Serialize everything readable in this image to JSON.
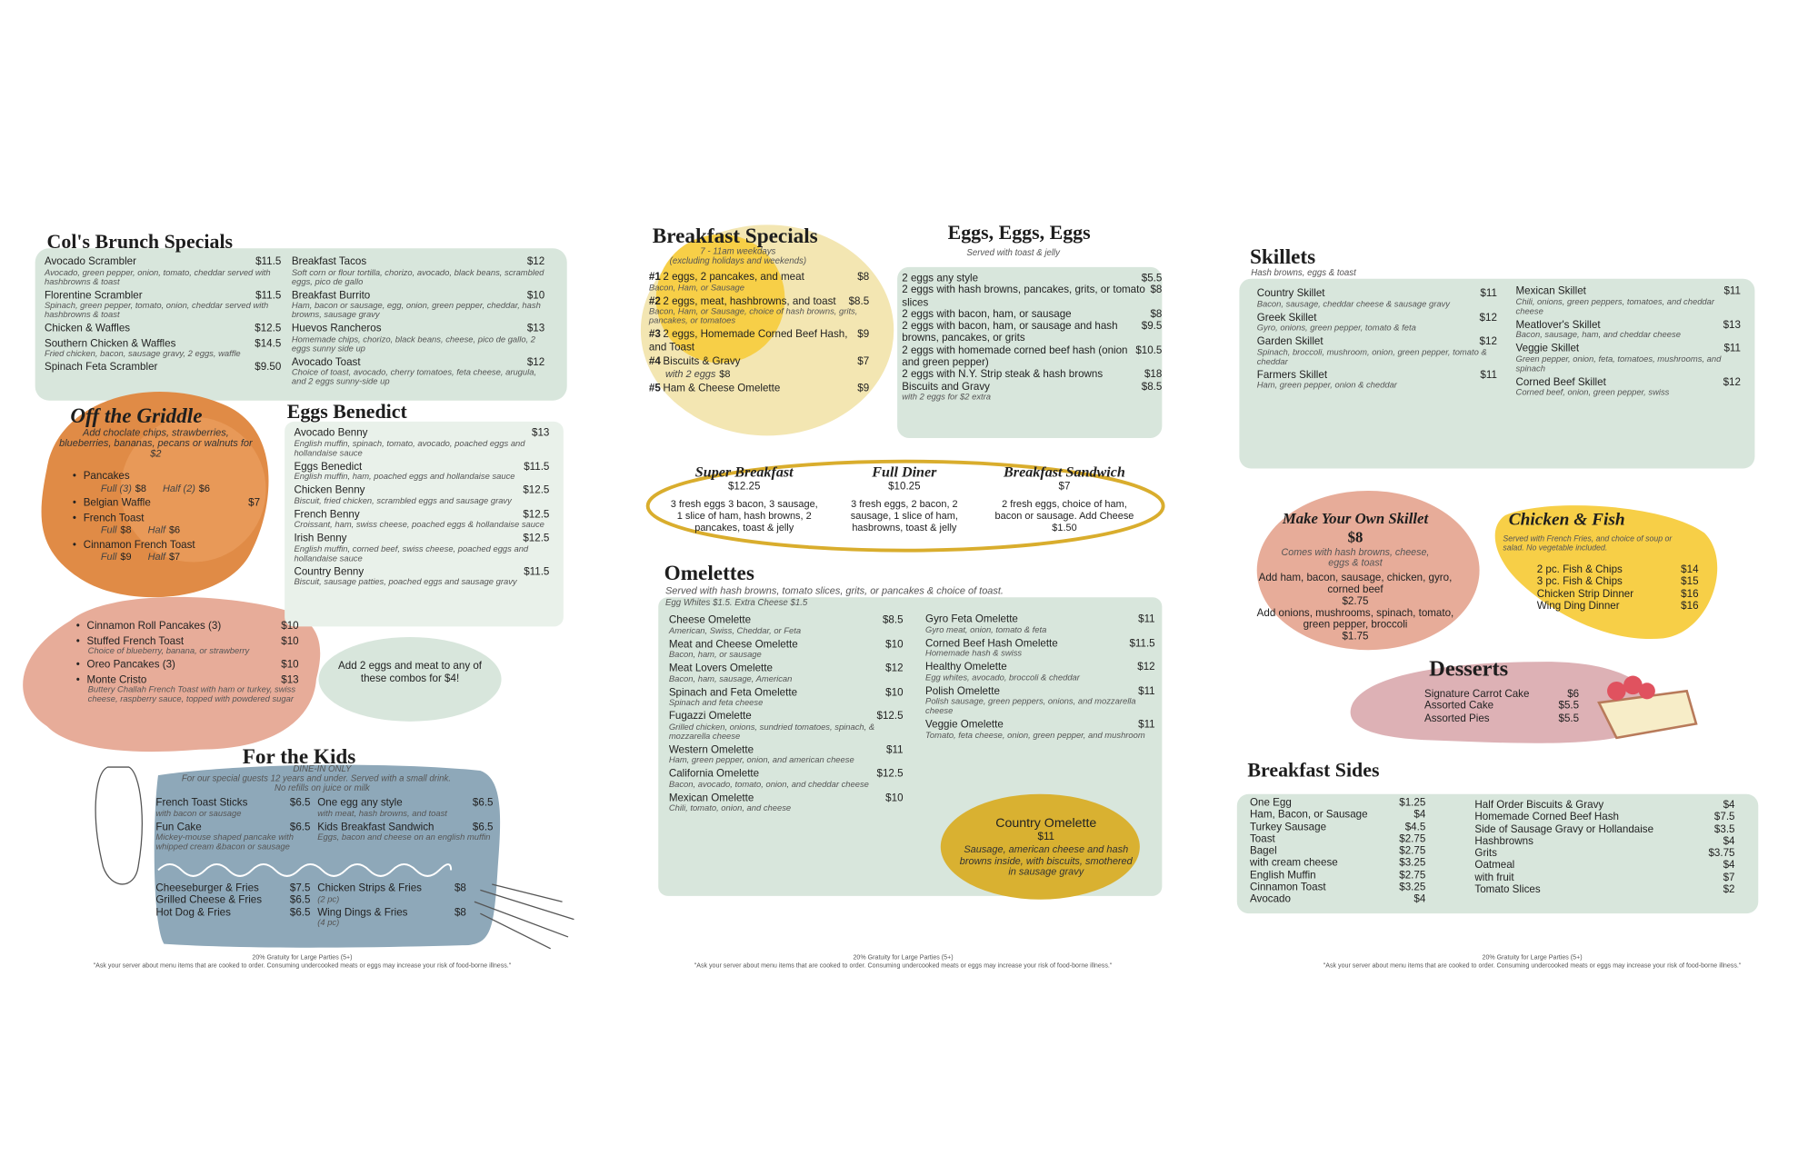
{
  "brunch_specials": {
    "title": "Col's Brunch Specials",
    "left": [
      {
        "name": "Avocado Scrambler",
        "price": "$11.5",
        "desc": "Avocado, green pepper, onion, tomato, cheddar served with hashbrowns & toast"
      },
      {
        "name": "Florentine Scrambler",
        "price": "$11.5",
        "desc": "Spinach, green pepper, tomato, onion, cheddar served with hashbrowns & toast"
      },
      {
        "name": "Chicken & Waffles",
        "price": "$12.5"
      },
      {
        "name": "Southern Chicken & Waffles",
        "price": "$14.5",
        "desc": "Fried chicken, bacon, sausage gravy, 2 eggs, waffle"
      },
      {
        "name": "Spinach Feta Scrambler",
        "price": "$9.50"
      }
    ],
    "right": [
      {
        "name": "Breakfast Tacos",
        "price": "$12",
        "desc": "Soft corn or flour tortilla, chorizo, avocado, black beans, scrambled eggs, pico de gallo"
      },
      {
        "name": "Breakfast Burrito",
        "price": "$10",
        "desc": "Ham, bacon or sausage, egg, onion, green pepper, cheddar, hash browns, sausage gravy"
      },
      {
        "name": "Huevos Rancheros",
        "price": "$13",
        "desc": "Homemade chips, chorizo, black beans, cheese, pico de gallo, 2 eggs sunny side up"
      },
      {
        "name": "Avocado Toast",
        "price": "$12",
        "desc": "Choice of toast, avocado, cherry tomatoes, feta cheese, arugula, and 2 eggs sunny-side up"
      }
    ]
  },
  "off_the_griddle": {
    "title": "Off the Griddle",
    "note": "Add choclate chips, strawberries, blueberries, bananas, pecans or walnuts for $2",
    "items": [
      {
        "name": "Pancakes",
        "options": [
          {
            "label": "Full (3)",
            "price": "$8"
          },
          {
            "label": "Half (2)",
            "price": "$6"
          }
        ]
      },
      {
        "name": "Belgian Waffle",
        "price": "$7"
      },
      {
        "name": "French Toast",
        "options": [
          {
            "label": "Full",
            "price": "$8"
          },
          {
            "label": "Half",
            "price": "$6"
          }
        ]
      },
      {
        "name": "Cinnamon French Toast",
        "options": [
          {
            "label": "Full",
            "price": "$9"
          },
          {
            "label": "Half",
            "price": "$7"
          }
        ]
      }
    ]
  },
  "griddle_extras": {
    "items": [
      {
        "name": "Cinnamon Roll Pancakes (3)",
        "price": "$10"
      },
      {
        "name": "Stuffed French Toast",
        "price": "$10",
        "desc": "Choice of blueberry, banana, or strawberry"
      },
      {
        "name": "Oreo Pancakes (3)",
        "price": "$10"
      },
      {
        "name": "Monte Cristo",
        "price": "$13",
        "desc": "Buttery Challah French Toast with ham or turkey, swiss cheese, raspberry sauce, topped with powdered sugar"
      }
    ],
    "combo_note": "Add 2 eggs and meat to any of these combos for $4!"
  },
  "eggs_benedict": {
    "title": "Eggs Benedict",
    "items": [
      {
        "name": "Avocado Benny",
        "price": "$13",
        "desc": "English muffin, spinach, tomato, avocado, poached eggs and hollandaise sauce"
      },
      {
        "name": "Eggs Benedict",
        "price": "$11.5",
        "desc": "English muffin, ham, poached eggs and hollandaise sauce"
      },
      {
        "name": "Chicken Benny",
        "price": "$12.5",
        "desc": "Biscuit, fried chicken, scrambled eggs and sausage gravy"
      },
      {
        "name": "French Benny",
        "price": "$12.5",
        "desc": "Croissant, ham, swiss cheese, poached eggs & hollandaise sauce"
      },
      {
        "name": "Irish Benny",
        "price": "$12.5",
        "desc": "English muffin, corned beef, swiss cheese, poached eggs and hollandaise sauce"
      },
      {
        "name": "Country Benny",
        "price": "$11.5",
        "desc": "Biscuit, sausage patties, poached eggs and sausage gravy"
      }
    ]
  },
  "kids": {
    "title": "For the Kids",
    "dine_in": "DINE-IN ONLY",
    "note": "For our special guests 12 years and under. Served with a small drink.",
    "refill_note": "No refills on juice or milk",
    "top_left": [
      {
        "name": "French Toast Sticks",
        "price": "$6.5",
        "desc": "with bacon or sausage"
      },
      {
        "name": "Fun Cake",
        "price": "$6.5",
        "desc": "Mickey-mouse shaped pancake with whipped cream &bacon or sausage"
      }
    ],
    "top_right": [
      {
        "name": "One egg any style",
        "price": "$6.5",
        "desc": "with meat, hash browns, and toast"
      },
      {
        "name": "Kids Breakfast Sandwich",
        "price": "$6.5",
        "desc": "Eggs, bacon and cheese on an english muffin"
      }
    ],
    "bottom_left": [
      {
        "name": "Cheeseburger & Fries",
        "price": "$7.5"
      },
      {
        "name": "Grilled Cheese & Fries",
        "price": "$6.5"
      },
      {
        "name": "Hot Dog & Fries",
        "price": "$6.5"
      }
    ],
    "bottom_right": [
      {
        "name": "Chicken Strips & Fries",
        "price": "$8",
        "desc": "(2 pc)"
      },
      {
        "name": "Wing Dings & Fries",
        "price": "$8",
        "desc": "(4 pc)"
      }
    ]
  },
  "footer": {
    "gratuity": "20% Gratuity for Large Parties (5+)",
    "advisory": "\"Ask your server about menu items that are cooked to order. Consuming undercooked meats or eggs may increase your risk of food-borne illness.\""
  },
  "breakfast_specials": {
    "title": "Breakfast Specials",
    "hours": "7 - 11am weekdays",
    "exclusion": "(excluding holidays and weekends)",
    "items": [
      {
        "num": "#1",
        "name": "2 eggs, 2 pancakes, and meat",
        "price": "$8",
        "desc": "Bacon, Ham, or Sausage"
      },
      {
        "num": "#2",
        "name": "2 eggs, meat, hashbrowns, and toast",
        "price": "$8.5",
        "desc": "Bacon, Ham, or Sausage, choice of hash browns, grits, pancakes, or tomatoes"
      },
      {
        "num": "#3",
        "name": "2 eggs, Homemade Corned Beef Hash, and Toast",
        "price": "$9"
      },
      {
        "num": "#4",
        "name": "Biscuits & Gravy",
        "price": "$7",
        "options": [
          {
            "label": "with 2 eggs",
            "price": "$8"
          }
        ]
      },
      {
        "num": "#5",
        "name": "Ham & Cheese Omelette",
        "price": "$9"
      }
    ]
  },
  "eggs": {
    "title": "Eggs, Eggs, Eggs",
    "subtitle": "Served with toast & jelly",
    "items": [
      {
        "name": "2 eggs any style",
        "price": "$5.5"
      },
      {
        "name": "2 eggs with hash browns, pancakes, grits, or tomato slices",
        "price": "$8"
      },
      {
        "name": "2 eggs with bacon, ham, or sausage",
        "price": "$8"
      },
      {
        "name": "2 eggs with bacon, ham, or sausage and hash browns, pancakes, or grits",
        "price": "$9.5"
      },
      {
        "name": "2 eggs with homemade corned beef hash (onion and green pepper)",
        "price": "$10.5"
      },
      {
        "name": "2 eggs with N.Y. Strip steak & hash browns",
        "price": "$18"
      },
      {
        "name": "Biscuits and Gravy",
        "price": "$8.5",
        "desc": "with 2 eggs for $2 extra"
      }
    ]
  },
  "combos": {
    "items": [
      {
        "name": "Super Breakfast",
        "price": "$12.25",
        "desc": "3 fresh eggs 3 bacon, 3 sausage, 1 slice of ham, hash browns, 2 pancakes, toast & jelly"
      },
      {
        "name": "Full Diner",
        "price": "$10.25",
        "desc": "3 fresh eggs, 2 bacon, 2 sausage, 1 slice of ham, hasbrowns, toast & jelly"
      },
      {
        "name": "Breakfast Sandwich",
        "price": "$7",
        "desc": "2 fresh eggs, choice of ham, bacon or sausage. Add Cheese $1.50"
      }
    ]
  },
  "omelettes": {
    "title": "Omelettes",
    "subtitle": "Served with hash browns, tomato slices, grits, or pancakes & choice of toast.",
    "extras": "Egg Whites $1.5.  Extra Cheese $1.5",
    "left": [
      {
        "name": "Cheese Omelette",
        "price": "$8.5",
        "desc": "American, Swiss, Cheddar, or Feta"
      },
      {
        "name": "Meat and Cheese Omelette",
        "price": "$10",
        "desc": "Bacon, ham, or sausage"
      },
      {
        "name": "Meat Lovers Omelette",
        "price": "$12",
        "desc": "Bacon, ham, sausage, American"
      },
      {
        "name": "Spinach and Feta Omelette",
        "price": "$10",
        "desc": "Spinach and feta cheese"
      },
      {
        "name": "Fugazzi Omelette",
        "price": "$12.5",
        "desc": "Grilled chicken, onions, sundried tomatoes, spinach, & mozzarella cheese"
      },
      {
        "name": "Western Omelette",
        "price": "$11",
        "desc": "Ham, green pepper, onion, and american cheese"
      },
      {
        "name": "California Omelette",
        "price": "$12.5",
        "desc": "Bacon, avocado, tomato, onion, and cheddar cheese"
      },
      {
        "name": "Mexican Omelette",
        "price": "$10",
        "desc": "Chili, tomato, onion, and cheese"
      }
    ],
    "right": [
      {
        "name": "Gyro Feta Omelette",
        "price": "$11",
        "desc": "Gyro meat, onion, tomato & feta"
      },
      {
        "name": "Corned Beef Hash Omelette",
        "price": "$11.5",
        "desc": "Homemade hash & swiss"
      },
      {
        "name": "Healthy Omelette",
        "price": "$12",
        "desc": "Egg whites, avocado, broccoli & cheddar"
      },
      {
        "name": "Polish Omelette",
        "price": "$11",
        "desc": "Polish sausage, green peppers, onions, and mozzarella cheese"
      },
      {
        "name": "Veggie Omelette",
        "price": "$11",
        "desc": "Tomato, feta cheese, onion, green pepper, and mushroom"
      }
    ]
  },
  "country_omelette": {
    "name": "Country Omelette",
    "price": "$11",
    "desc": "Sausage, american cheese and hash browns inside, with biscuits, smothered in sausage gravy"
  },
  "skillets": {
    "title": "Skillets",
    "subtitle": "Hash browns, eggs & toast",
    "left": [
      {
        "name": "Country Skillet",
        "price": "$11",
        "desc": "Bacon, sausage, cheddar cheese & sausage gravy"
      },
      {
        "name": "Greek Skillet",
        "price": "$12",
        "desc": "Gyro, onions, green pepper, tomato & feta"
      },
      {
        "name": "Garden Skillet",
        "price": "$12",
        "desc": "Spinach, broccoli, mushroom, onion, green pepper, tomato & cheddar"
      },
      {
        "name": "Farmers Skillet",
        "price": "$11",
        "desc": "Ham, green pepper, onion & cheddar"
      }
    ],
    "right": [
      {
        "name": "Mexican Skillet",
        "price": "$11",
        "desc": "Chili, onions, green peppers, tomatoes, and cheddar cheese"
      },
      {
        "name": "Meatlover's Skillet",
        "price": "$13",
        "desc": "Bacon, sausage, ham, and cheddar cheese"
      },
      {
        "name": "Veggie Skillet",
        "price": "$11",
        "desc": "Green pepper, onion, feta, tomatoes, mushrooms, and spinach"
      },
      {
        "name": "Corned Beef Skillet",
        "price": "$12",
        "desc": "Corned beef, onion, green pepper, swiss"
      }
    ]
  },
  "make_your_own": {
    "title": "Make Your Own Skillet",
    "price": "$8",
    "note": "Comes with hash browns, cheese, eggs & toast",
    "add_meat": "Add ham, bacon, sausage, chicken, gyro, corned beef",
    "meat_price": "$2.75",
    "add_veg": "Add onions, mushrooms, spinach, tomato, green pepper, broccoli",
    "veg_price": "$1.75"
  },
  "chicken_fish": {
    "title": "Chicken & Fish",
    "note": "Served with French Fries, and choice of soup or salad. No vegetable included.",
    "items": [
      {
        "name": "2 pc. Fish & Chips",
        "price": "$14"
      },
      {
        "name": "3 pc. Fish & Chips",
        "price": "$15"
      },
      {
        "name": "Chicken Strip Dinner",
        "price": "$16"
      },
      {
        "name": "Wing Ding Dinner",
        "price": "$16"
      }
    ]
  },
  "desserts": {
    "title": "Desserts",
    "items": [
      {
        "name": "Signature Carrot Cake",
        "price": "$6"
      },
      {
        "name": "Assorted Cake",
        "price": "$5.5"
      },
      {
        "name": "Assorted Pies",
        "price": "$5.5"
      }
    ]
  },
  "sides": {
    "title": "Breakfast Sides",
    "left": [
      {
        "name": "One Egg",
        "price": "$1.25"
      },
      {
        "name": "Ham, Bacon, or Sausage",
        "price": "$4"
      },
      {
        "name": "Turkey Sausage",
        "price": "$4.5"
      },
      {
        "name": "Toast",
        "price": "$2.75"
      },
      {
        "name": "Bagel",
        "price": "$2.75"
      },
      {
        "name": "with cream cheese",
        "price": "$3.25"
      },
      {
        "name": "English Muffin",
        "price": "$2.75"
      },
      {
        "name": "Cinnamon Toast",
        "price": "$3.25"
      },
      {
        "name": "Avocado",
        "price": "$4"
      }
    ],
    "right": [
      {
        "name": "Half Order Biscuits & Gravy",
        "price": "$4"
      },
      {
        "name": "Homemade Corned Beef Hash",
        "price": "$7.5"
      },
      {
        "name": "Side of Sausage Gravy or Hollandaise",
        "price": "$3.5"
      },
      {
        "name": "Hashbrowns",
        "price": "$4"
      },
      {
        "name": "Grits",
        "price": "$3.75"
      },
      {
        "name": "Oatmeal",
        "price": "$4"
      },
      {
        "name": "with fruit",
        "price": "$7"
      },
      {
        "name": "Tomato Slices",
        "price": "$2"
      }
    ]
  }
}
